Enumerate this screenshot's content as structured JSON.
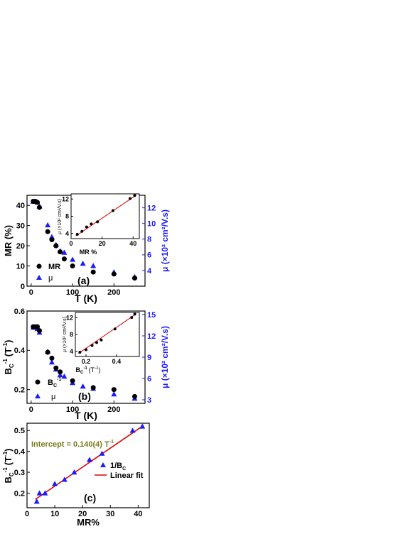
{
  "chart_data": [
    {
      "panel": "(a)",
      "type": "scatter",
      "xlabel": "T (K)",
      "ylabel_left": "MR (%)",
      "ylabel_right": "μ (×10² cm²/V.s)",
      "xlim": [
        -10,
        275
      ],
      "ylim_left": [
        0,
        45
      ],
      "ylim_right": [
        2,
        13.6
      ],
      "xticks": [
        "0",
        "100",
        "200"
      ],
      "yticks_left": [
        "0",
        "10",
        "20",
        "30",
        "40"
      ],
      "yticks_right": [
        "4",
        "6",
        "8",
        "10",
        "12"
      ],
      "legend": [
        "MR",
        "μ"
      ],
      "series": [
        {
          "name": "MR",
          "axis": "left",
          "marker": "circle",
          "color": "#000000",
          "x": [
            5,
            10,
            15,
            20,
            40,
            50,
            60,
            70,
            80,
            100,
            150,
            200,
            250
          ],
          "y": [
            42,
            42,
            41.5,
            39,
            27,
            23,
            20,
            17,
            13.5,
            10,
            7,
            6,
            4
          ]
        },
        {
          "name": "μ",
          "axis": "right",
          "marker": "triangle",
          "color": "#1a1aff",
          "x": [
            5,
            10,
            15,
            20,
            40,
            50,
            60,
            70,
            80,
            100,
            125,
            150,
            200,
            250
          ],
          "y": [
            12.8,
            12.8,
            12.7,
            12.2,
            9.8,
            8.3,
            7.3,
            6.5,
            6.3,
            5.4,
            4.9,
            4.6,
            3.8,
            3.2
          ]
        }
      ],
      "inset": {
        "xlabel": "MR %",
        "ylabel": "μ (×10² cm²/V.s)",
        "xlim": [
          0,
          44
        ],
        "ylim": [
          2.8,
          13.2
        ],
        "xticks": [
          "0",
          "20",
          "40"
        ],
        "yticks": [
          "4",
          "8",
          "12"
        ],
        "points": {
          "x": [
            4,
            7,
            10,
            13,
            17,
            27,
            38,
            41
          ],
          "y": [
            3.8,
            4.5,
            5.5,
            6.2,
            6.7,
            9.3,
            12.1,
            12.8
          ]
        },
        "fit": {
          "x": [
            3,
            42
          ],
          "y": [
            3.4,
            12.9
          ]
        }
      }
    },
    {
      "panel": "(b)",
      "type": "scatter",
      "xlabel": "T (K)",
      "ylabel_left_main": "B",
      "ylabel_left_sub": "C",
      "ylabel_left_sup": "-1",
      "ylabel_left_unit": "(T",
      "ylabel_left_unit_sup": "-1",
      "ylabel_left_close": ")",
      "ylabel_right": "μ (×10² cm²/V.s)",
      "xlim": [
        -10,
        275
      ],
      "ylim_left": [
        0.13,
        0.6
      ],
      "ylim_right": [
        2.5,
        15.5
      ],
      "xticks": [
        "0",
        "100",
        "200"
      ],
      "yticks_left": [
        "0.2",
        "0.4",
        "0.6"
      ],
      "yticks_right": [
        "3",
        "6",
        "9",
        "12",
        "15"
      ],
      "legend_main": "B",
      "legend_sub": "C",
      "legend_sup": "-1",
      "legend_mu": "μ",
      "series": [
        {
          "name": "B_C^-1",
          "axis": "left",
          "marker": "circle",
          "color": "#000000",
          "x": [
            5,
            10,
            15,
            20,
            40,
            50,
            60,
            70,
            100,
            150,
            200,
            250
          ],
          "y": [
            0.52,
            0.52,
            0.52,
            0.5,
            0.39,
            0.36,
            0.31,
            0.29,
            0.245,
            0.21,
            0.2,
            0.165
          ]
        },
        {
          "name": "μ",
          "axis": "right",
          "marker": "triangle",
          "color": "#1a1aff",
          "x": [
            5,
            10,
            15,
            20,
            40,
            50,
            60,
            70,
            80,
            100,
            125,
            150,
            200,
            250
          ],
          "y": [
            13.2,
            13.2,
            13.0,
            12.5,
            9.8,
            8.3,
            7.3,
            6.5,
            6.3,
            5.4,
            4.9,
            4.6,
            3.8,
            3.2
          ]
        }
      ],
      "inset": {
        "xlabel_main": "B",
        "xlabel_sub": "C",
        "xlabel_sup": "-1",
        "xlabel_unit": "(T",
        "xlabel_unit_sup": "-1",
        "xlabel_close": ")",
        "ylabel": "μ (×10² cm²/V.s)",
        "xlim": [
          0.13,
          0.55
        ],
        "ylim": [
          2.8,
          13.2
        ],
        "xticks": [
          "0.2",
          "0.4"
        ],
        "yticks": [
          "4",
          "8",
          "12"
        ],
        "points": {
          "x": [
            0.16,
            0.2,
            0.24,
            0.27,
            0.3,
            0.39,
            0.5,
            0.52
          ],
          "y": [
            3.8,
            4.4,
            5.4,
            6.1,
            6.7,
            9.3,
            12.0,
            12.8
          ]
        },
        "fit": {
          "x": [
            0.15,
            0.53
          ],
          "y": [
            3.5,
            12.9
          ]
        }
      }
    },
    {
      "panel": "(c)",
      "type": "scatter",
      "xlabel": "MR%",
      "ylabel_main": "B",
      "ylabel_sub": "C",
      "ylabel_sup": "-1",
      "ylabel_unit": "(T",
      "ylabel_unit_sup": "-1",
      "ylabel_close": ")",
      "xlim": [
        0,
        44
      ],
      "ylim": [
        0.13,
        0.535
      ],
      "xticks": [
        "0",
        "10",
        "20",
        "30",
        "40"
      ],
      "yticks": [
        "0.2",
        "0.3",
        "0.4",
        "0.5"
      ],
      "annotation": "Intercept = 0.140(4) T",
      "annotation_sup": "-1",
      "annotation_color": "#7a7a1e",
      "legend_points_main": "1/B",
      "legend_points_sub": "C",
      "legend_fit": "Linear fit",
      "series": [
        {
          "name": "1/B_C",
          "marker": "triangle",
          "color": "#1a1aff",
          "x": [
            3.5,
            4.5,
            6.5,
            10,
            13.5,
            17,
            22.5,
            27,
            38,
            41.5
          ],
          "y": [
            0.16,
            0.2,
            0.2,
            0.245,
            0.265,
            0.3,
            0.36,
            0.39,
            0.5,
            0.52
          ]
        },
        {
          "name": "Linear fit",
          "type": "line",
          "color": "#e00000",
          "x": [
            3,
            42
          ],
          "y": [
            0.17,
            0.525
          ]
        }
      ]
    }
  ],
  "panel_labels": {
    "a": "(a)",
    "b": "(b)",
    "c": "(c)"
  }
}
